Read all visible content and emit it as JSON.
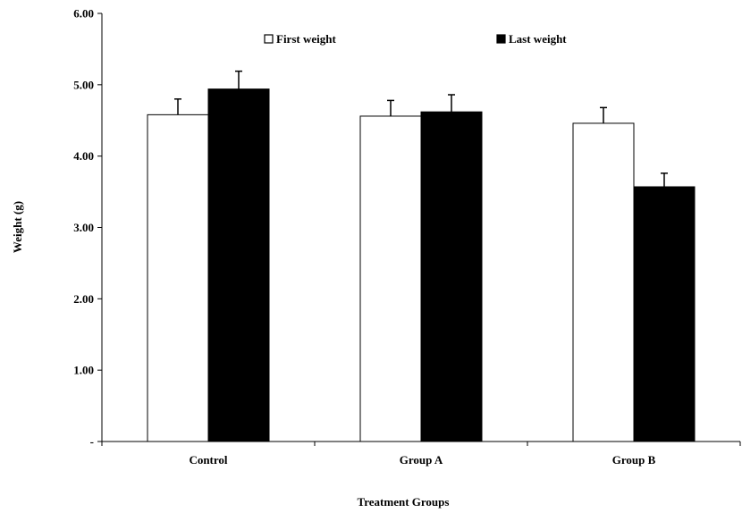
{
  "chart_data": {
    "type": "bar",
    "title": "",
    "xlabel": "Treatment Groups",
    "ylabel": "Weight (g)",
    "ylim": [
      0,
      6
    ],
    "yticks": [
      {
        "value": 0,
        "label": "-"
      },
      {
        "value": 1,
        "label": "1.00"
      },
      {
        "value": 2,
        "label": "2.00"
      },
      {
        "value": 3,
        "label": "3.00"
      },
      {
        "value": 4,
        "label": "4.00"
      },
      {
        "value": 5,
        "label": "5.00"
      },
      {
        "value": 6,
        "label": "6.00"
      }
    ],
    "categories": [
      "Control",
      "Group A",
      "Group B"
    ],
    "series": [
      {
        "name": "First weight",
        "fill": "#ffffff",
        "stroke": "#000000",
        "values": [
          4.58,
          4.56,
          4.46
        ],
        "errors": [
          0.22,
          0.22,
          0.22
        ]
      },
      {
        "name": "Last weight",
        "fill": "#000000",
        "stroke": "#000000",
        "values": [
          4.94,
          4.62,
          3.57
        ],
        "errors": [
          0.25,
          0.24,
          0.19
        ]
      }
    ],
    "grid": false,
    "legend_position": "top"
  }
}
